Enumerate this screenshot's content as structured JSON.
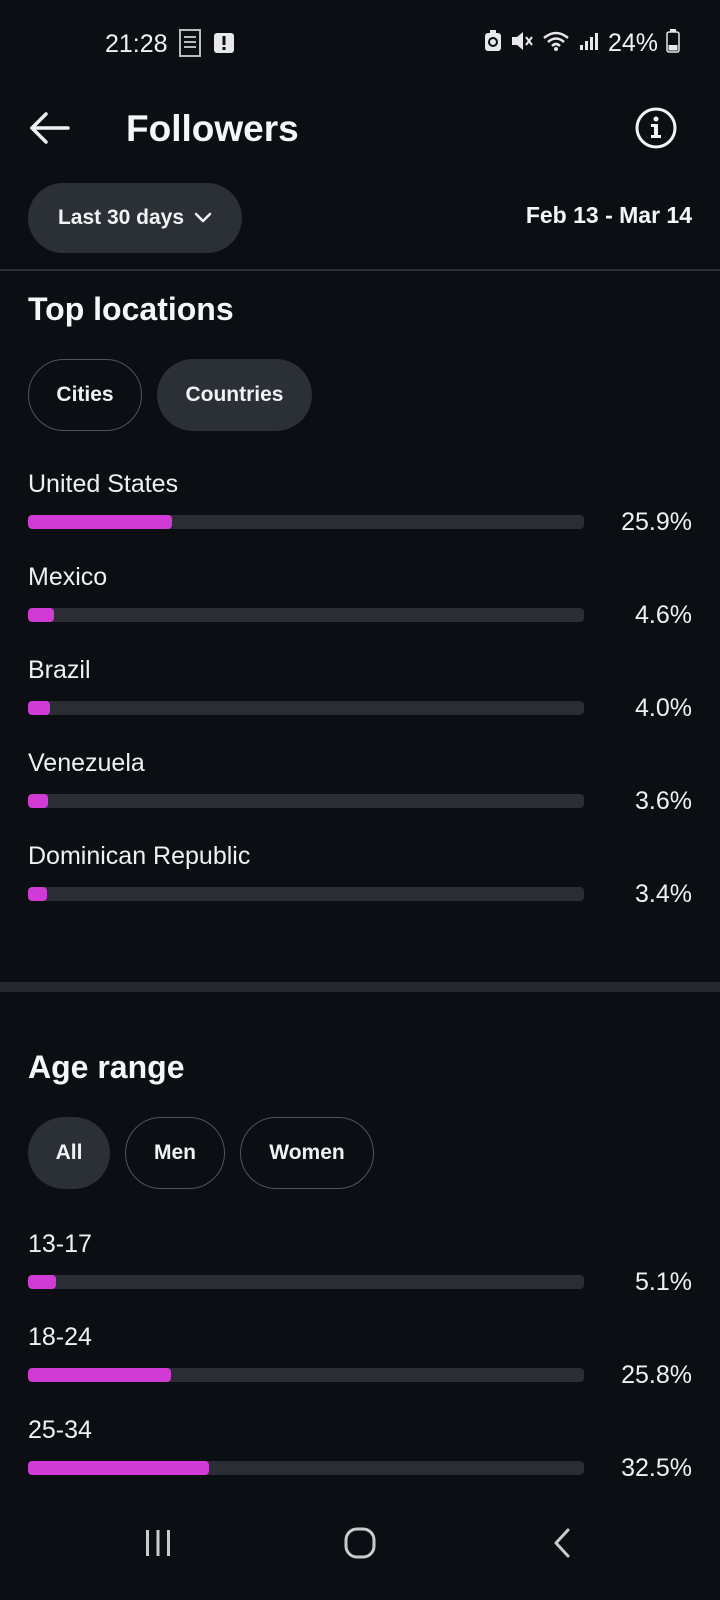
{
  "status_bar": {
    "time": "21:28",
    "battery_text": "24%",
    "icons": [
      "document-icon",
      "alert-icon",
      "battery-saver-icon",
      "mute-icon",
      "wifi-icon",
      "signal-icon",
      "battery-icon"
    ]
  },
  "header": {
    "title": "Followers",
    "back_icon": "arrow-left-icon",
    "info_icon": "info-icon"
  },
  "filter": {
    "range_label": "Last 30 days",
    "date_range": "Feb 13 - Mar 14"
  },
  "top_locations": {
    "title": "Top locations",
    "tabs": [
      {
        "label": "Cities",
        "selected": false
      },
      {
        "label": "Countries",
        "selected": true
      }
    ],
    "rows": [
      {
        "label": "United States",
        "value": "25.9%",
        "fraction": 0.259
      },
      {
        "label": "Mexico",
        "value": "4.6%",
        "fraction": 0.046
      },
      {
        "label": "Brazil",
        "value": "4.0%",
        "fraction": 0.04
      },
      {
        "label": "Venezuela",
        "value": "3.6%",
        "fraction": 0.036
      },
      {
        "label": "Dominican Republic",
        "value": "3.4%",
        "fraction": 0.034
      }
    ]
  },
  "age_range": {
    "title": "Age range",
    "tabs": [
      {
        "label": "All",
        "selected": true
      },
      {
        "label": "Men",
        "selected": false
      },
      {
        "label": "Women",
        "selected": false
      }
    ],
    "rows": [
      {
        "label": "13-17",
        "value": "5.1%",
        "fraction": 0.051
      },
      {
        "label": "18-24",
        "value": "25.8%",
        "fraction": 0.258
      },
      {
        "label": "25-34",
        "value": "32.5%",
        "fraction": 0.325
      }
    ]
  },
  "colors": {
    "background": "#0b0e13",
    "bar_fill": "#d13bd5",
    "bar_track": "#2a2d33",
    "chip_fill": "#2b2f36"
  },
  "nav_bar": {
    "icons": [
      "recent-apps-icon",
      "home-icon",
      "back-icon"
    ]
  }
}
